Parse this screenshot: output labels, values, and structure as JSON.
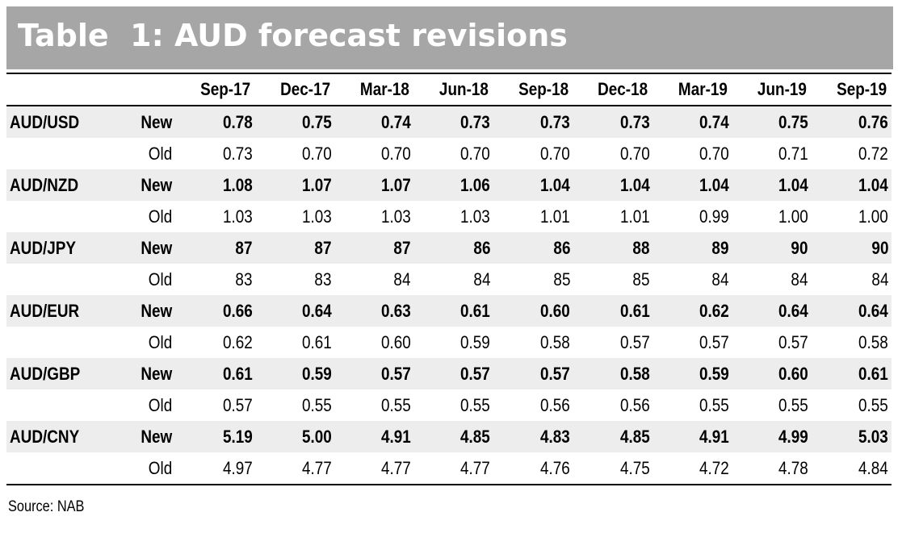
{
  "title": "Table  1: AUD forecast revisions",
  "columns": [
    "Sep-17",
    "Dec-17",
    "Mar-18",
    "Jun-18",
    "Sep-18",
    "Dec-18",
    "Mar-19",
    "Jun-19",
    "Sep-19"
  ],
  "rows": [
    {
      "pair": "AUD/USD",
      "kind": "New",
      "values": [
        "0.78",
        "0.75",
        "0.74",
        "0.73",
        "0.73",
        "0.73",
        "0.74",
        "0.75",
        "0.76"
      ]
    },
    {
      "pair": "",
      "kind": "Old",
      "values": [
        "0.73",
        "0.70",
        "0.70",
        "0.70",
        "0.70",
        "0.70",
        "0.70",
        "0.71",
        "0.72"
      ]
    },
    {
      "pair": "AUD/NZD",
      "kind": "New",
      "values": [
        "1.08",
        "1.07",
        "1.07",
        "1.06",
        "1.04",
        "1.04",
        "1.04",
        "1.04",
        "1.04"
      ]
    },
    {
      "pair": "",
      "kind": "Old",
      "values": [
        "1.03",
        "1.03",
        "1.03",
        "1.03",
        "1.01",
        "1.01",
        "0.99",
        "1.00",
        "1.00"
      ]
    },
    {
      "pair": "AUD/JPY",
      "kind": "New",
      "values": [
        "87",
        "87",
        "87",
        "86",
        "86",
        "88",
        "89",
        "90",
        "90"
      ]
    },
    {
      "pair": "",
      "kind": "Old",
      "values": [
        "83",
        "83",
        "84",
        "84",
        "85",
        "85",
        "84",
        "84",
        "84"
      ]
    },
    {
      "pair": "AUD/EUR",
      "kind": "New",
      "values": [
        "0.66",
        "0.64",
        "0.63",
        "0.61",
        "0.60",
        "0.61",
        "0.62",
        "0.64",
        "0.64"
      ]
    },
    {
      "pair": "",
      "kind": "Old",
      "values": [
        "0.62",
        "0.61",
        "0.60",
        "0.59",
        "0.58",
        "0.57",
        "0.57",
        "0.57",
        "0.58"
      ]
    },
    {
      "pair": "AUD/GBP",
      "kind": "New",
      "values": [
        "0.61",
        "0.59",
        "0.57",
        "0.57",
        "0.57",
        "0.58",
        "0.59",
        "0.60",
        "0.61"
      ]
    },
    {
      "pair": "",
      "kind": "Old",
      "values": [
        "0.57",
        "0.55",
        "0.55",
        "0.55",
        "0.56",
        "0.56",
        "0.55",
        "0.55",
        "0.55"
      ]
    },
    {
      "pair": "AUD/CNY",
      "kind": "New",
      "values": [
        "5.19",
        "5.00",
        "4.91",
        "4.85",
        "4.83",
        "4.85",
        "4.91",
        "4.99",
        "5.03"
      ]
    },
    {
      "pair": "",
      "kind": "Old",
      "values": [
        "4.97",
        "4.77",
        "4.77",
        "4.77",
        "4.76",
        "4.75",
        "4.72",
        "4.78",
        "4.84"
      ]
    }
  ],
  "source": "Source: NAB"
}
